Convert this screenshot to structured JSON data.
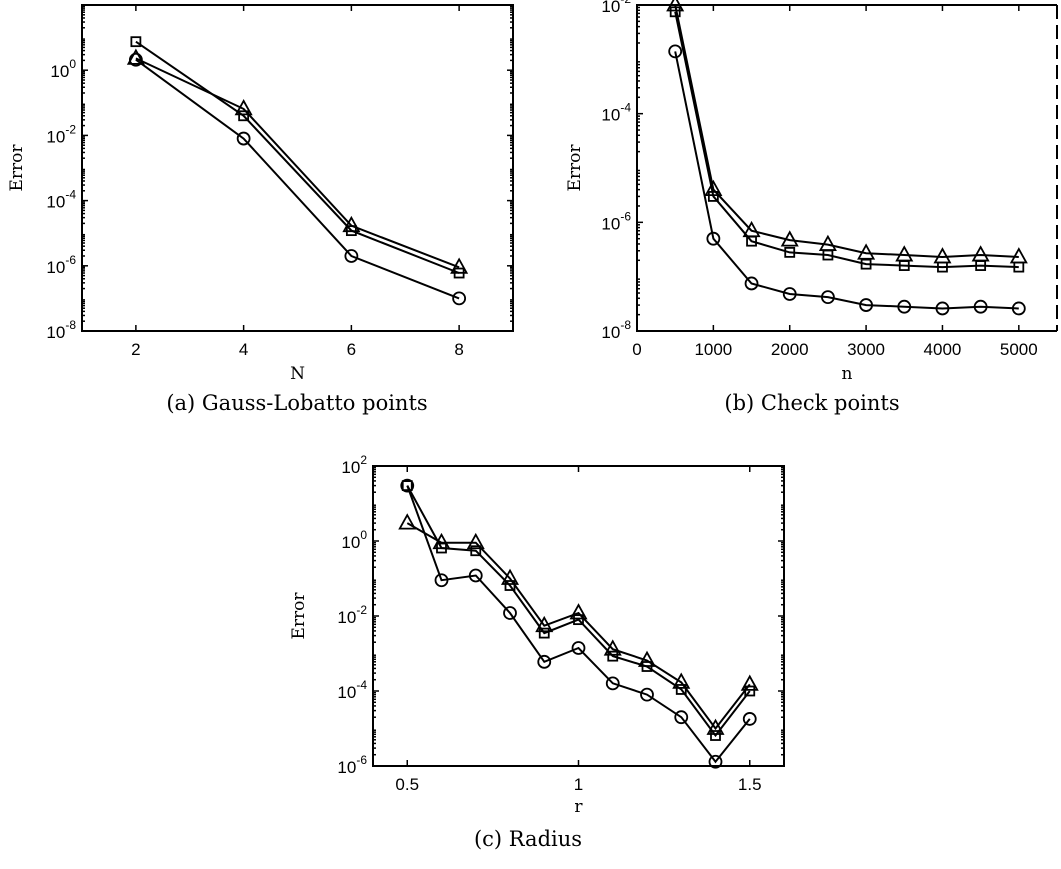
{
  "chart_data": [
    {
      "type": "line",
      "caption": "(a) Gauss-Lobatto points",
      "xlabel": "N",
      "ylabel": "Error",
      "yscale": "log",
      "xlim": [
        1,
        9
      ],
      "ylim": [
        1e-08,
        100
      ],
      "xticks": [
        2,
        4,
        6,
        8
      ],
      "xtick_labels": [
        "2",
        "4",
        "6",
        "8"
      ],
      "yticks": [
        1e-08,
        1e-06,
        0.0001,
        0.01,
        1
      ],
      "ytick_labels": [
        {
          "base": "10",
          "exp": "-8"
        },
        {
          "base": "10",
          "exp": "-6"
        },
        {
          "base": "10",
          "exp": "-4"
        },
        {
          "base": "10",
          "exp": "-2"
        },
        {
          "base": "10",
          "exp": "0"
        }
      ],
      "x": [
        2,
        4,
        6,
        8
      ],
      "series": [
        {
          "marker": "circle",
          "values": [
            2.1,
            0.008,
            2e-06,
            1e-07
          ]
        },
        {
          "marker": "square",
          "values": [
            7.5,
            0.04,
            1.2e-05,
            6e-07
          ]
        },
        {
          "marker": "triangle",
          "values": [
            2.3,
            0.065,
            1.7e-05,
            9e-07
          ]
        }
      ]
    },
    {
      "type": "line",
      "caption": "(b) Check points",
      "xlabel": "n",
      "ylabel": "Error",
      "yscale": "log",
      "xlim": [
        0,
        5500
      ],
      "ylim": [
        1e-08,
        0.01
      ],
      "xticks": [
        0,
        1000,
        2000,
        3000,
        4000,
        5000
      ],
      "xtick_labels": [
        "0",
        "1000",
        "2000",
        "3000",
        "4000",
        "5000"
      ],
      "yticks": [
        1e-08,
        1e-06,
        0.0001,
        0.01
      ],
      "ytick_labels": [
        {
          "base": "10",
          "exp": "-8"
        },
        {
          "base": "10",
          "exp": "-6"
        },
        {
          "base": "10",
          "exp": "-4"
        },
        {
          "base": "10",
          "exp": "-2"
        }
      ],
      "x": [
        500,
        1000,
        1500,
        2000,
        2500,
        3000,
        3500,
        4000,
        4500,
        5000
      ],
      "series": [
        {
          "marker": "circle",
          "values": [
            0.0014,
            5e-07,
            7.5e-08,
            4.8e-08,
            4.2e-08,
            3e-08,
            2.8e-08,
            2.6e-08,
            2.8e-08,
            2.6e-08
          ]
        },
        {
          "marker": "square",
          "values": [
            0.0075,
            3e-06,
            4.5e-07,
            2.8e-07,
            2.5e-07,
            1.7e-07,
            1.6e-07,
            1.5e-07,
            1.6e-07,
            1.5e-07
          ]
        },
        {
          "marker": "triangle",
          "values": [
            0.01,
            4e-06,
            7e-07,
            4.7e-07,
            3.9e-07,
            2.7e-07,
            2.5e-07,
            2.3e-07,
            2.5e-07,
            2.3e-07
          ]
        }
      ]
    },
    {
      "type": "line",
      "caption": "(c) Radius",
      "xlabel": "r",
      "ylabel": "Error",
      "yscale": "log",
      "xlim": [
        0.4,
        1.6
      ],
      "ylim": [
        1e-06,
        100
      ],
      "xticks": [
        0.5,
        1,
        1.5
      ],
      "xtick_labels": [
        "0.5",
        "1",
        "1.5"
      ],
      "yticks": [
        1e-06,
        0.0001,
        0.01,
        1,
        100
      ],
      "ytick_labels": [
        {
          "base": "10",
          "exp": "-6"
        },
        {
          "base": "10",
          "exp": "-4"
        },
        {
          "base": "10",
          "exp": "-2"
        },
        {
          "base": "10",
          "exp": "0"
        },
        {
          "base": "10",
          "exp": "2"
        }
      ],
      "x": [
        0.5,
        0.6,
        0.7,
        0.8,
        0.9,
        1.0,
        1.1,
        1.2,
        1.3,
        1.4,
        1.5
      ],
      "series": [
        {
          "marker": "circle",
          "values": [
            30,
            0.09,
            0.12,
            0.012,
            0.0006,
            0.0014,
            0.00016,
            8e-05,
            2e-05,
            1.3e-06,
            1.8e-05
          ]
        },
        {
          "marker": "square",
          "values": [
            30,
            0.65,
            0.55,
            0.065,
            0.0035,
            0.008,
            0.00085,
            0.00045,
            0.00011,
            6.5e-06,
            0.0001
          ]
        },
        {
          "marker": "triangle",
          "values": [
            3,
            0.9,
            0.9,
            0.1,
            0.0055,
            0.012,
            0.0013,
            0.00065,
            0.00017,
            1e-05,
            0.00015
          ]
        }
      ]
    }
  ]
}
